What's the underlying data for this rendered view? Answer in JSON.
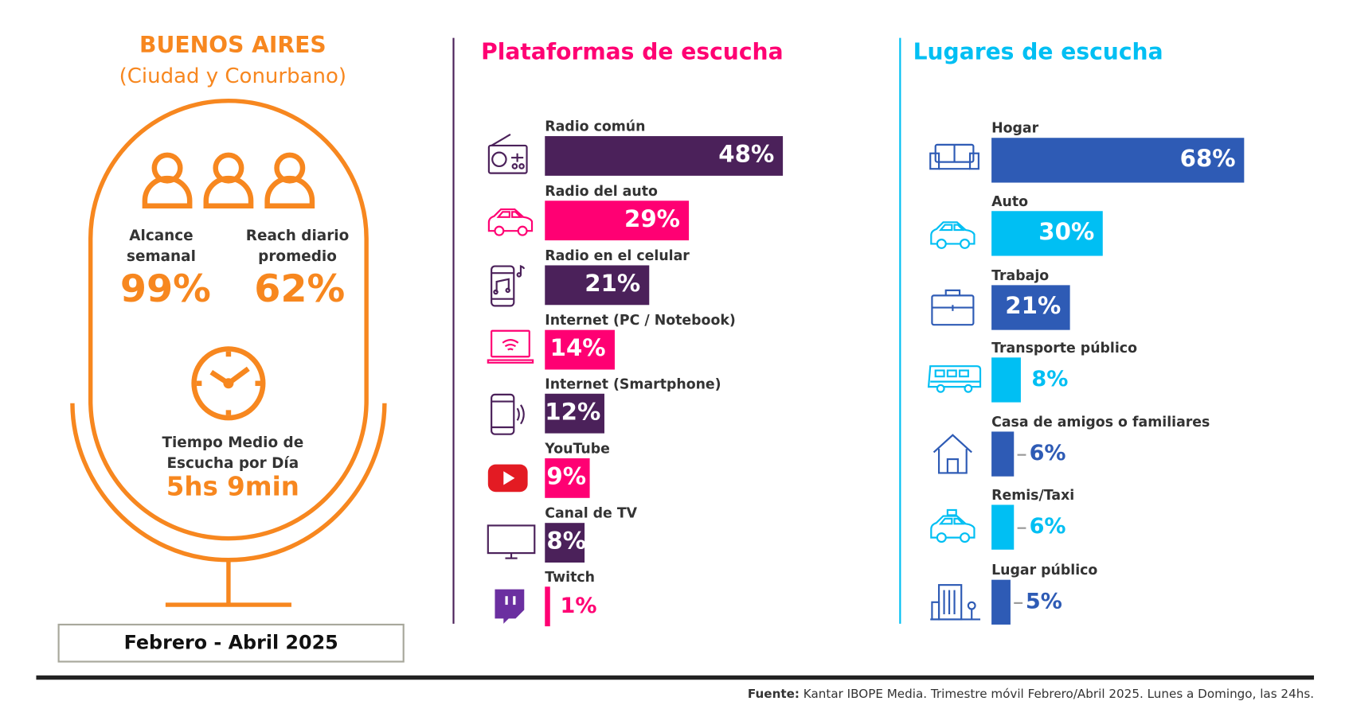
{
  "left": {
    "title": "BUENOS AIRES",
    "subtitle": "(Ciudad y Conurbano)",
    "alcance_label_1": "Alcance",
    "alcance_label_2": "semanal",
    "alcance_value": "99%",
    "reach_label_1": "Reach diario",
    "reach_label_2": "promedio",
    "reach_value": "62%",
    "tiempo_label_1": "Tiempo Medio de",
    "tiempo_label_2": "Escucha por Día",
    "tiempo_value": "5hs 9min",
    "period": "Febrero - Abril 2025"
  },
  "footer": {
    "source_label": "Fuente:",
    "source_text": "Kantar IBOPE Media. Trimestre móvil Febrero/Abril 2025. Lunes a Domingo, las 24hs."
  },
  "colors": {
    "orange": "#F7871F",
    "purple": "#4B215A",
    "pink": "#FF0073",
    "blue": "#2E5BB5",
    "cyan": "#00BFF3"
  },
  "chart_data": [
    {
      "type": "bar",
      "orientation": "horizontal",
      "title": "Plataformas de escucha",
      "unit": "%",
      "categories": [
        "Radio común",
        "Radio del auto",
        "Radio en el celular",
        "Internet (PC / Notebook)",
        "Internet (Smartphone)",
        "YouTube",
        "Canal de TV",
        "Twitch"
      ],
      "values": [
        48,
        29,
        21,
        14,
        12,
        9,
        8,
        1
      ],
      "labels": [
        "48%",
        "29%",
        "21%",
        "14%",
        "12%",
        "9%",
        "8%",
        "1%"
      ],
      "bar_colors": [
        "#4B215A",
        "#FF0073",
        "#4B215A",
        "#FF0073",
        "#4B215A",
        "#FF0073",
        "#4B215A",
        "#FF0073"
      ],
      "icons": [
        "radio-icon",
        "car-icon",
        "smartphone-music-icon",
        "laptop-wifi-icon",
        "smartphone-sound-icon",
        "youtube-icon",
        "tv-icon",
        "twitch-icon"
      ]
    },
    {
      "type": "bar",
      "orientation": "horizontal",
      "title": "Lugares de escucha",
      "unit": "%",
      "categories": [
        "Hogar",
        "Auto",
        "Trabajo",
        "Transporte público",
        "Casa de amigos o familiares",
        "Remis/Taxi",
        "Lugar público"
      ],
      "values": [
        68,
        30,
        21,
        8,
        6,
        6,
        5
      ],
      "labels": [
        "68%",
        "30%",
        "21%",
        "8%",
        "6%",
        "6%",
        "5%"
      ],
      "bar_colors": [
        "#2E5BB5",
        "#00BFF3",
        "#2E5BB5",
        "#00BFF3",
        "#2E5BB5",
        "#00BFF3",
        "#2E5BB5"
      ],
      "icons": [
        "sofa-icon",
        "car-icon",
        "briefcase-icon",
        "bus-icon",
        "house-icon",
        "taxi-icon",
        "building-icon"
      ]
    }
  ]
}
